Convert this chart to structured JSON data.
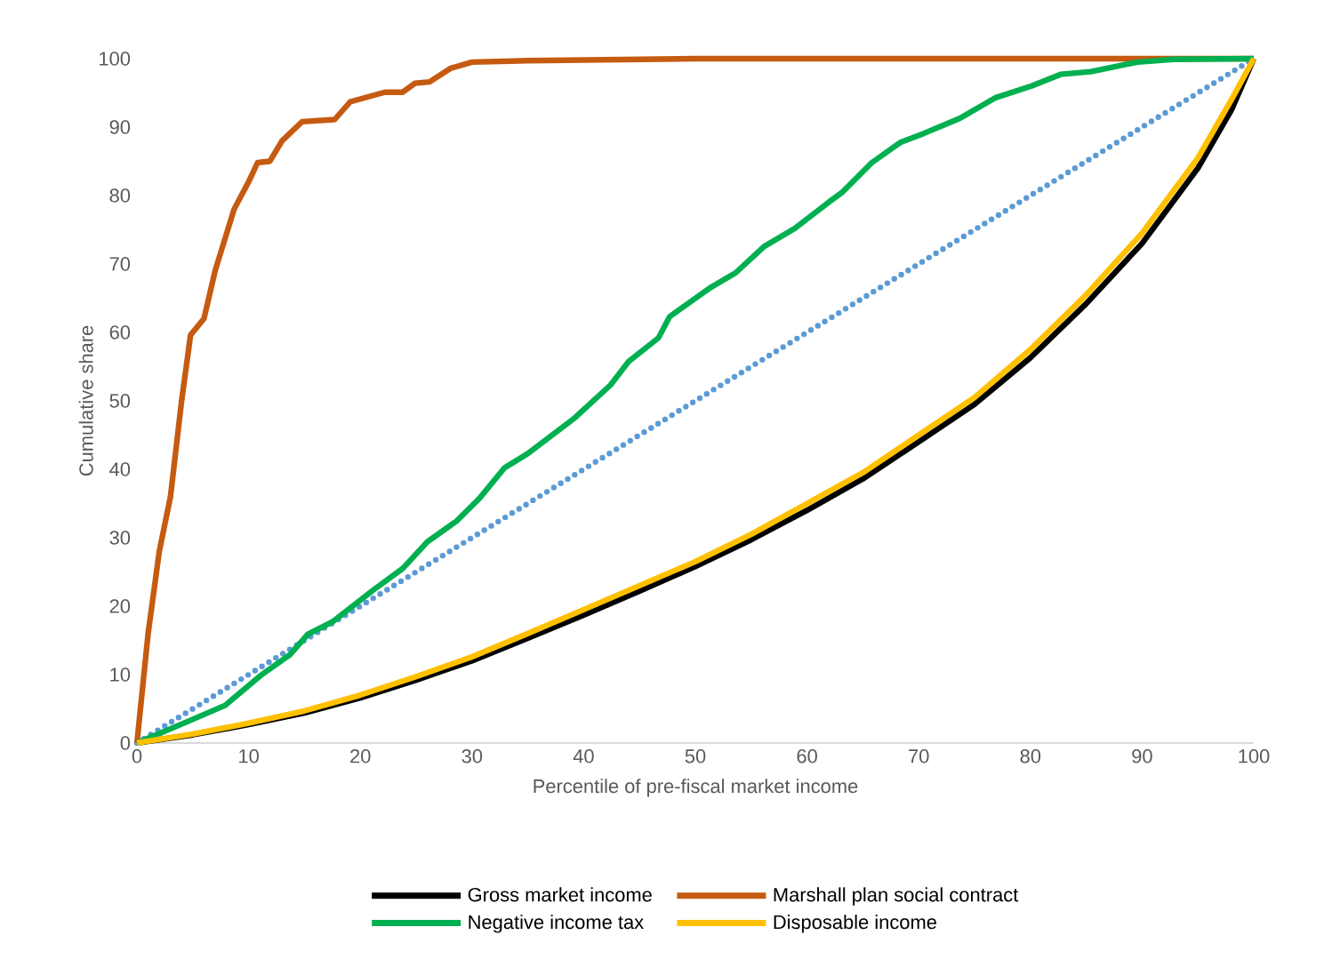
{
  "chart_data": {
    "type": "line",
    "xlabel": "Percentile of pre-fiscal market income",
    "ylabel": "Cumulative share",
    "xlim": [
      0,
      100
    ],
    "ylim": [
      0,
      100
    ],
    "xticks": [
      0,
      10,
      20,
      30,
      40,
      50,
      60,
      70,
      80,
      90,
      100
    ],
    "yticks": [
      0,
      10,
      20,
      30,
      40,
      50,
      60,
      70,
      80,
      90,
      100
    ],
    "grid": false,
    "legend": "bottom",
    "marker": "none",
    "series": [
      {
        "name": "Gross market income",
        "color": "#000000",
        "line_style": "solid",
        "x": [
          0,
          5,
          10,
          15,
          20,
          25,
          30,
          35,
          40,
          45,
          50,
          55,
          60,
          65,
          70,
          75,
          80,
          85,
          90,
          95,
          98,
          100
        ],
        "values": [
          0,
          1.2,
          2.7,
          4.4,
          6.6,
          9.2,
          12,
          15.3,
          18.7,
          22.2,
          25.8,
          29.7,
          34,
          38.6,
          44,
          49.5,
          56.3,
          64.2,
          73,
          84,
          92.5,
          100
        ]
      },
      {
        "name": "Marshall plan social contract",
        "color": "#c55a11",
        "line_style": "solid",
        "x": [
          0,
          1,
          2,
          3,
          4,
          4.8,
          6,
          7,
          8.7,
          10,
          10.8,
          11.9,
          13,
          14.8,
          17.7,
          19.1,
          22.2,
          23.8,
          24.9,
          26.2,
          28.1,
          30,
          35,
          50,
          100
        ],
        "values": [
          0,
          16,
          28,
          36,
          50,
          59.6,
          62,
          69,
          78,
          82,
          84.8,
          85,
          88,
          90.8,
          91.1,
          93.7,
          95.1,
          95.1,
          96.4,
          96.6,
          98.6,
          99.5,
          99.7,
          100,
          100
        ]
      },
      {
        "name": "Negative income tax",
        "color": "#00b050",
        "line_style": "solid",
        "x": [
          0,
          4.2,
          7.9,
          11.1,
          13.7,
          15.3,
          17.5,
          21.2,
          23.8,
          26,
          28.6,
          30.7,
          32.9,
          35,
          39.2,
          42.4,
          44,
          46.7,
          47.7,
          51.4,
          53.6,
          56.2,
          58.9,
          62,
          63.1,
          65.8,
          68.4,
          70.5,
          73.7,
          76.9,
          80.1,
          82.7,
          85.4,
          89.6,
          92.8,
          100
        ],
        "values": [
          0,
          2.9,
          5.5,
          9.9,
          12.9,
          15.9,
          17.7,
          22.4,
          25.5,
          29.4,
          32.4,
          35.8,
          40.2,
          42.3,
          47.5,
          52.3,
          55.7,
          59.2,
          62.3,
          66.6,
          68.7,
          72.6,
          75.2,
          79.1,
          80.4,
          84.8,
          87.8,
          89.1,
          91.3,
          94.3,
          96,
          97.7,
          98.1,
          99.5,
          99.9,
          100
        ]
      },
      {
        "name": "Disposable income",
        "color": "#ffc000",
        "line_style": "solid",
        "x": [
          0,
          5,
          10,
          15,
          20,
          25,
          30,
          35,
          40,
          45,
          50,
          55,
          60,
          65,
          70,
          75,
          80,
          85,
          90,
          95,
          98,
          100
        ],
        "values": [
          0,
          1.3,
          2.9,
          4.7,
          7,
          9.7,
          12.6,
          16,
          19.5,
          23,
          26.5,
          30.5,
          35,
          39.5,
          45,
          50.5,
          57.5,
          65.5,
          74.5,
          85.5,
          94,
          100
        ]
      },
      {
        "color": "#5b9bd5",
        "line_style": "dotted",
        "x": [
          0,
          100
        ],
        "values": [
          0,
          100
        ]
      }
    ]
  }
}
